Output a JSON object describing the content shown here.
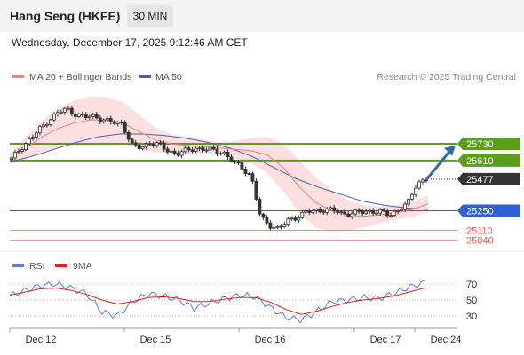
{
  "header": {
    "title": "Hang Seng (HKFE)",
    "timeframe": "30 MIN"
  },
  "datetime": "Wednesday, December 17, 2025 9:12:46 AM CET",
  "legend": {
    "ma20": "MA 20 + Bollinger Bands",
    "ma50": "MA 50",
    "rsi": "RSI",
    "rsi_ma": "9MA"
  },
  "credit": "Research © 2025 Trading Central",
  "colors": {
    "candle": "#333333",
    "ma20": "#f08080",
    "ma50": "#4a5fa8",
    "bands": "#fbd4d4",
    "resistance": "#5a9e1a",
    "support_blue": "#2f5fd6",
    "support_red": "#e06060",
    "last": "#333333",
    "arrow": "#2e6bb0",
    "rsi": "#5b7fd6",
    "rsi_ma": "#e02020"
  },
  "chart_data": {
    "type": "candlestick",
    "title": "Hang Seng (HKFE)",
    "interval": "30 MIN",
    "x_labels": [
      "Dec 12",
      "Dec 15",
      "Dec 16",
      "Dec 17",
      "Dec 24"
    ],
    "price_range": [
      24980,
      26150
    ],
    "levels": [
      {
        "value": 25730,
        "label": "25730",
        "kind": "resistance"
      },
      {
        "value": 25610,
        "label": "25610",
        "kind": "resistance"
      },
      {
        "value": 25477,
        "label": "25477",
        "kind": "last"
      },
      {
        "value": 25250,
        "label": "25250",
        "kind": "support-blue"
      },
      {
        "value": 25110,
        "label": "25110",
        "kind": "support-red"
      },
      {
        "value": 25040,
        "label": "25040",
        "kind": "support-red"
      }
    ],
    "price_path": [
      25620,
      25700,
      25760,
      25830,
      25900,
      25950,
      25980,
      25940,
      25920,
      25930,
      25900,
      25880,
      25880,
      25720,
      25700,
      25740,
      25720,
      25680,
      25660,
      25680,
      25700,
      25690,
      25680,
      25670,
      25600,
      25560,
      25500,
      25200,
      25150,
      25120,
      25180,
      25210,
      25240,
      25250,
      25260,
      25250,
      25230,
      25230,
      25240,
      25250,
      25240,
      25220,
      25260,
      25300,
      25450,
      25480
    ],
    "ma20": [
      25620,
      25700,
      25780,
      25840,
      25880,
      25900,
      25900,
      25880,
      25820,
      25760,
      25730,
      25720,
      25710,
      25700,
      25690,
      25680,
      25650,
      25560,
      25420,
      25310,
      25250,
      25220,
      25210,
      25220,
      25240,
      25260,
      25300
    ],
    "ma50": [
      25600,
      25640,
      25690,
      25740,
      25780,
      25800,
      25800,
      25790,
      25770,
      25740,
      25700,
      25640,
      25560,
      25480,
      25420,
      25370,
      25320,
      25290,
      25270,
      25260
    ],
    "rsi_scale": [
      70,
      50,
      30
    ],
    "rsi": [
      55,
      62,
      68,
      70,
      65,
      58,
      35,
      30,
      48,
      58,
      55,
      50,
      40,
      46,
      52,
      56,
      54,
      40,
      28,
      25,
      36,
      48,
      50,
      53,
      52,
      58,
      66,
      72
    ],
    "rsi_ma": [
      56,
      60,
      64,
      65,
      62,
      57,
      50,
      45,
      48,
      53,
      54,
      52,
      48,
      48,
      51,
      53,
      53,
      47,
      38,
      32,
      36,
      42,
      47,
      50,
      52,
      55,
      60,
      65
    ]
  }
}
